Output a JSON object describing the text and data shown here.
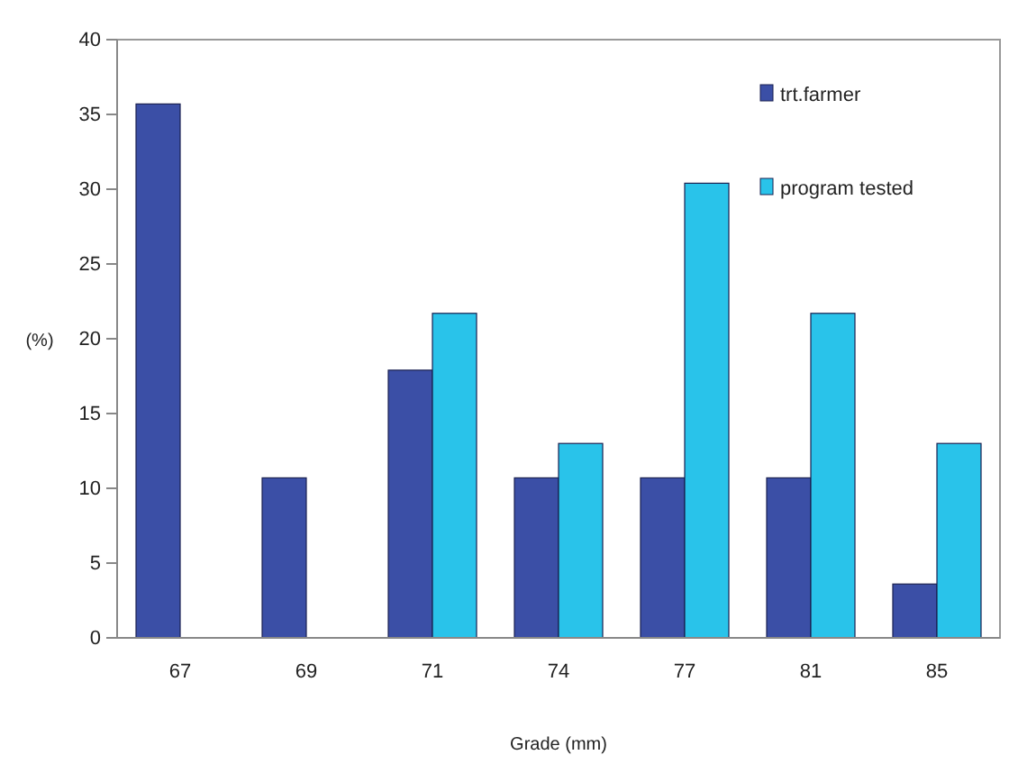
{
  "chart_data": {
    "type": "bar",
    "xlabel": "Grade (mm)",
    "ylabel": "(%)",
    "categories": [
      "67",
      "69",
      "71",
      "74",
      "77",
      "81",
      "85"
    ],
    "series": [
      {
        "name": "trt.farmer",
        "color": "#3b4fa6",
        "values": [
          35.7,
          10.7,
          17.9,
          10.7,
          10.7,
          10.7,
          3.6
        ]
      },
      {
        "name": "program tested",
        "color": "#29c3ea",
        "values": [
          null,
          null,
          21.7,
          13.0,
          30.4,
          21.7,
          13.0
        ]
      }
    ],
    "ylim": [
      0,
      40
    ],
    "yticks": [
      0,
      5,
      10,
      15,
      20,
      25,
      30,
      35,
      40
    ],
    "grid": false,
    "legend": "top right"
  }
}
